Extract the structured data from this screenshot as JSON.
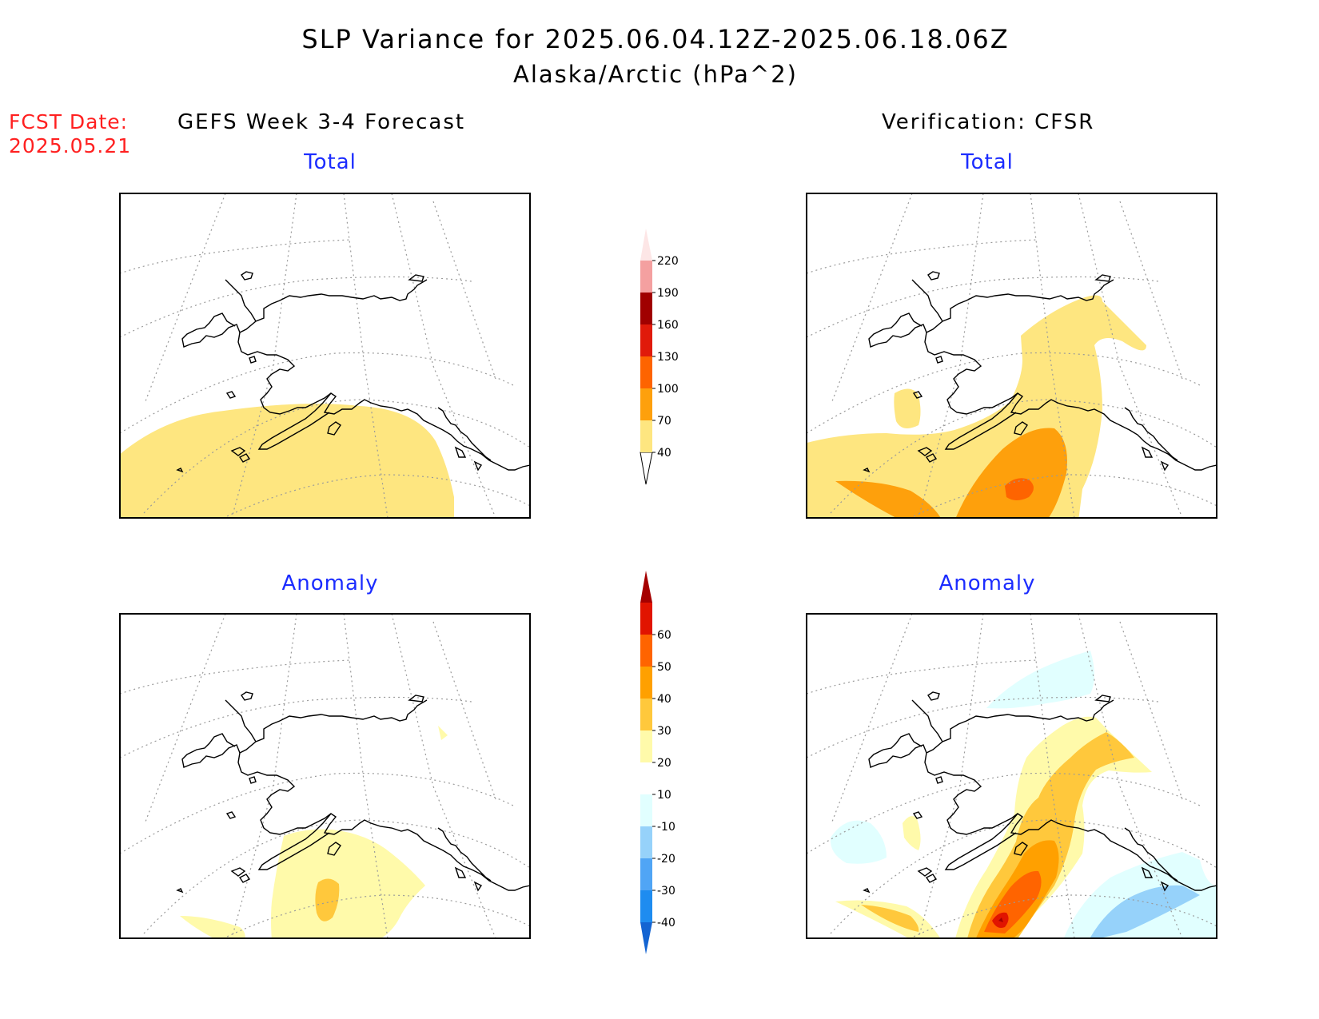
{
  "title": "SLP Variance for 2025.06.04.12Z-2025.06.18.06Z",
  "subtitle": "Alaska/Arctic (hPa^2)",
  "fcst_label": "FCST Date:",
  "fcst_date": "2025.05.21",
  "left_header": "GEFS Week 3-4 Forecast",
  "right_header": "Verification: CFSR",
  "panels": {
    "forecast_total": "Total",
    "forecast_anomaly": "Anomaly",
    "verification_total": "Total",
    "verification_anomaly": "Anomaly"
  },
  "colorbars": {
    "total": {
      "labels": [
        "40",
        "70",
        "100",
        "130",
        "160",
        "190",
        "220"
      ],
      "colors": [
        "#fee680",
        "#fea00c",
        "#fe6400",
        "#e01a0a",
        "#a00000",
        "#f4a0a0",
        "#fde6e6"
      ]
    },
    "anomaly": {
      "labels": [
        "-40",
        "-30",
        "-20",
        "-10",
        "10",
        "20",
        "30",
        "40",
        "50",
        "60"
      ],
      "colors": [
        "#1464d2",
        "#1e8cf0",
        "#50a5f5",
        "#96d2fa",
        "#e1ffff",
        "#ffffff",
        "#fffaaa",
        "#ffc83c",
        "#ffa000",
        "#ff6400",
        "#e11400",
        "#a50000"
      ]
    }
  }
}
